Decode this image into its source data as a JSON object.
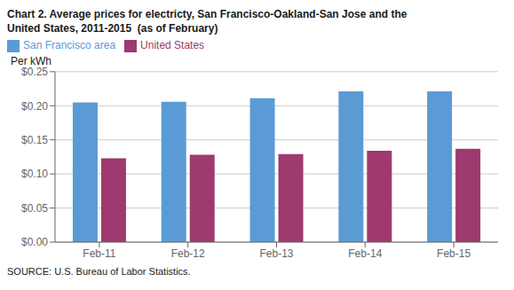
{
  "chart_data": {
    "type": "bar",
    "title": "Chart 2. Average prices for electricty, San Francisco-Oakland-San Jose and the\nUnited States, 2011-2015  (as of February)",
    "y_label": "Per kWh",
    "source": "SOURCE: U.S. Bureau of Labor Statistics.",
    "categories": [
      "Feb-11",
      "Feb-12",
      "Feb-13",
      "Feb-14",
      "Feb-15"
    ],
    "series": [
      {
        "name": "San Francisco area",
        "color": "#5B9BD5",
        "values": [
          0.205,
          0.206,
          0.211,
          0.221,
          0.221
        ]
      },
      {
        "name": "United States",
        "color": "#9E3A6E",
        "values": [
          0.123,
          0.128,
          0.129,
          0.134,
          0.137
        ]
      }
    ],
    "ylim": [
      0,
      0.25
    ],
    "yticks": [
      {
        "value": 0.0,
        "label": "$0.00"
      },
      {
        "value": 0.05,
        "label": "$0.05"
      },
      {
        "value": 0.1,
        "label": "$0.10"
      },
      {
        "value": 0.15,
        "label": "$0.15"
      },
      {
        "value": 0.2,
        "label": "$0.20"
      },
      {
        "value": 0.25,
        "label": "$0.25"
      }
    ],
    "grid": true,
    "legend": "upper left"
  }
}
